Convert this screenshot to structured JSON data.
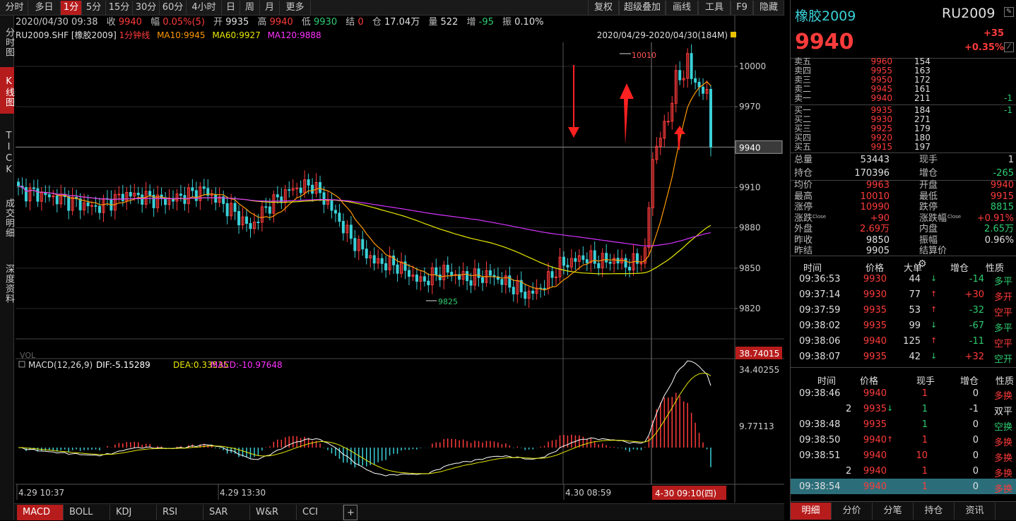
{
  "toolbar": {
    "left": [
      "分时",
      "多日",
      "1分",
      "5分",
      "15分",
      "30分",
      "60分",
      "4小时",
      "日",
      "周",
      "月",
      "更多"
    ],
    "active": "1分",
    "right": [
      "复权",
      "超级叠加",
      "画线",
      "工具",
      "F9",
      "隐藏"
    ]
  },
  "left_tabs": [
    "分时图",
    "K线图",
    "TICK",
    "成交明细",
    "深度资料"
  ],
  "left_tabs_active": "K线图",
  "infobar": {
    "datetime": "2020/04/30 09:38",
    "close_label": "收",
    "close": "9940",
    "range_label": "幅",
    "range": "0.05%(5)",
    "open_label": "开",
    "open": "9935",
    "high_label": "高",
    "high": "9940",
    "low_label": "低",
    "low": "9930",
    "settle_label": "结",
    "settle": "0",
    "oi_label": "仓",
    "oi": "17.04万",
    "vol_label": "量",
    "vol": "522",
    "inc_label": "增",
    "inc": "-95",
    "amp_label": "振",
    "amp": "0.10%"
  },
  "mabar": {
    "symbol": "RU2009.SHF",
    "name": "[橡胶2009]",
    "period": "1分钟线",
    "ma10": "MA10:9945",
    "ma60": "MA60:9927",
    "ma120": "MA120:9888"
  },
  "chart_period": "2020/04/29-2020/04/30(184M)",
  "price_axis": [
    "10000",
    "9970",
    "9940",
    "9910",
    "9880",
    "9850",
    "9820"
  ],
  "current_price_tag": "9940",
  "vol_tag": "38.74015",
  "hi_label": "10010",
  "lo_label": "9825",
  "macd_label": "MACD(12,26,9)",
  "dif": "DIF:-5.15289",
  "dea": "DEA:0.33535",
  "macd_val": "MACD:-10.97648",
  "macd_axis": [
    "34.40255",
    "9.77113"
  ],
  "time_axis": [
    "4.29 10:37",
    "4.29 13:30",
    "4.30 08:59"
  ],
  "time_cursor": "4-30 09:10(四)",
  "bottom_tabs": [
    "MACD",
    "BOLL",
    "KDJ",
    "RSI",
    "SAR",
    "W&R",
    "CCI",
    "+"
  ],
  "bottom_active": "MACD",
  "colors": {
    "up": "#ff3b3b",
    "down": "#3ad0d8",
    "ma10": "#ff9900",
    "ma60": "#e8e800",
    "ma120": "#d633ff",
    "accent": "#b71c1c"
  },
  "quote": {
    "name": "橡胶2009",
    "code": "RU2009",
    "price": "9940",
    "change": "+35",
    "change_pct": "+0.35%",
    "asks": [
      {
        "label": "卖五",
        "price": "9960",
        "vol": "154",
        "chg": ""
      },
      {
        "label": "卖四",
        "price": "9955",
        "vol": "163",
        "chg": ""
      },
      {
        "label": "卖三",
        "price": "9950",
        "vol": "172",
        "chg": ""
      },
      {
        "label": "卖二",
        "price": "9945",
        "vol": "161",
        "chg": ""
      },
      {
        "label": "卖一",
        "price": "9940",
        "vol": "211",
        "chg": "-1"
      }
    ],
    "bids": [
      {
        "label": "买一",
        "price": "9935",
        "vol": "184",
        "chg": "-1"
      },
      {
        "label": "买二",
        "price": "9930",
        "vol": "271",
        "chg": ""
      },
      {
        "label": "买三",
        "price": "9925",
        "vol": "179",
        "chg": ""
      },
      {
        "label": "买四",
        "price": "9920",
        "vol": "180",
        "chg": ""
      },
      {
        "label": "买五",
        "price": "9915",
        "vol": "197",
        "chg": ""
      }
    ],
    "stats1": [
      {
        "l1": "总量",
        "v1": "53443",
        "l2": "现手",
        "v2": "1",
        "c1": "wht",
        "c2": "wht"
      },
      {
        "l1": "持仓",
        "v1": "170396",
        "l2": "增仓",
        "v2": "-265",
        "c1": "wht",
        "c2": "grn"
      }
    ],
    "stats2": [
      {
        "l1": "均价",
        "v1": "9963",
        "l2": "开盘",
        "v2": "9940",
        "c1": "red",
        "c2": "red"
      },
      {
        "l1": "最高",
        "v1": "10010",
        "l2": "最低",
        "v2": "9915",
        "c1": "red",
        "c2": "red"
      },
      {
        "l1": "涨停",
        "v1": "10990",
        "l2": "跌停",
        "v2": "8815",
        "c1": "red",
        "c2": "grn"
      },
      {
        "l1": "涨跌",
        "v1": "+90",
        "l2": "涨跌幅",
        "v2": "+0.91%",
        "c1": "red",
        "c2": "red"
      },
      {
        "l1": "外盘",
        "v1": "2.69万",
        "l2": "内盘",
        "v2": "2.65万",
        "c1": "red",
        "c2": "grn"
      },
      {
        "l1": "昨收",
        "v1": "9850",
        "l2": "振幅",
        "v2": "0.96%",
        "c1": "wht",
        "c2": "wht"
      },
      {
        "l1": "昨结",
        "v1": "9905",
        "l2": "结算价",
        "v2": "",
        "c1": "wht",
        "c2": "wht"
      }
    ],
    "close_sub": "Close",
    "ticks_header": [
      "时间",
      "价格",
      "大单",
      "增仓",
      "性质"
    ],
    "ticks": [
      {
        "time": "09:36:53",
        "price": "9930",
        "vol": "44",
        "dir": "down",
        "inc": "-14",
        "type": "多平",
        "tc": "grn",
        "ic": "grn"
      },
      {
        "time": "09:37:14",
        "price": "9930",
        "vol": "77",
        "dir": "up",
        "inc": "+30",
        "type": "多开",
        "tc": "red",
        "ic": "red"
      },
      {
        "time": "09:37:59",
        "price": "9935",
        "vol": "53",
        "dir": "up",
        "inc": "-32",
        "type": "空平",
        "tc": "red",
        "ic": "grn"
      },
      {
        "time": "09:38:02",
        "price": "9935",
        "vol": "99",
        "dir": "down",
        "inc": "-67",
        "type": "多平",
        "tc": "grn",
        "ic": "grn"
      },
      {
        "time": "09:38:06",
        "price": "9940",
        "vol": "125",
        "dir": "up",
        "inc": "-11",
        "type": "空平",
        "tc": "red",
        "ic": "grn"
      },
      {
        "time": "09:38:07",
        "price": "9935",
        "vol": "42",
        "dir": "down",
        "inc": "+32",
        "type": "空开",
        "tc": "grn",
        "ic": "red"
      }
    ],
    "trades_header": [
      "时间",
      "价格",
      "现手",
      "增仓",
      "性质"
    ],
    "trades": [
      {
        "time": "09:38:46",
        "price": "9940",
        "arrow": "",
        "vol": "1",
        "inc": "0",
        "type": "多换",
        "tc": "red"
      },
      {
        "time": "2",
        "price": "9935",
        "arrow": "down",
        "vol": "1",
        "inc": "-1",
        "type": "双平",
        "tc": "wht"
      },
      {
        "time": "09:38:48",
        "price": "9935",
        "arrow": "",
        "vol": "1",
        "inc": "0",
        "type": "空换",
        "tc": "grn"
      },
      {
        "time": "09:38:50",
        "price": "9940",
        "arrow": "up",
        "vol": "1",
        "inc": "0",
        "type": "多换",
        "tc": "red"
      },
      {
        "time": "09:38:51",
        "price": "9940",
        "arrow": "",
        "vol": "10",
        "inc": "0",
        "type": "多换",
        "tc": "red"
      },
      {
        "time": "2",
        "price": "9940",
        "arrow": "",
        "vol": "1",
        "inc": "0",
        "type": "多换",
        "tc": "red"
      },
      {
        "time": "09:38:54",
        "price": "9940",
        "arrow": "",
        "vol": "1",
        "inc": "0",
        "type": "多换",
        "tc": "red"
      }
    ],
    "right_tabs": [
      "明细",
      "分价",
      "分笔",
      "持仓",
      "资讯"
    ],
    "right_active": "明细"
  }
}
